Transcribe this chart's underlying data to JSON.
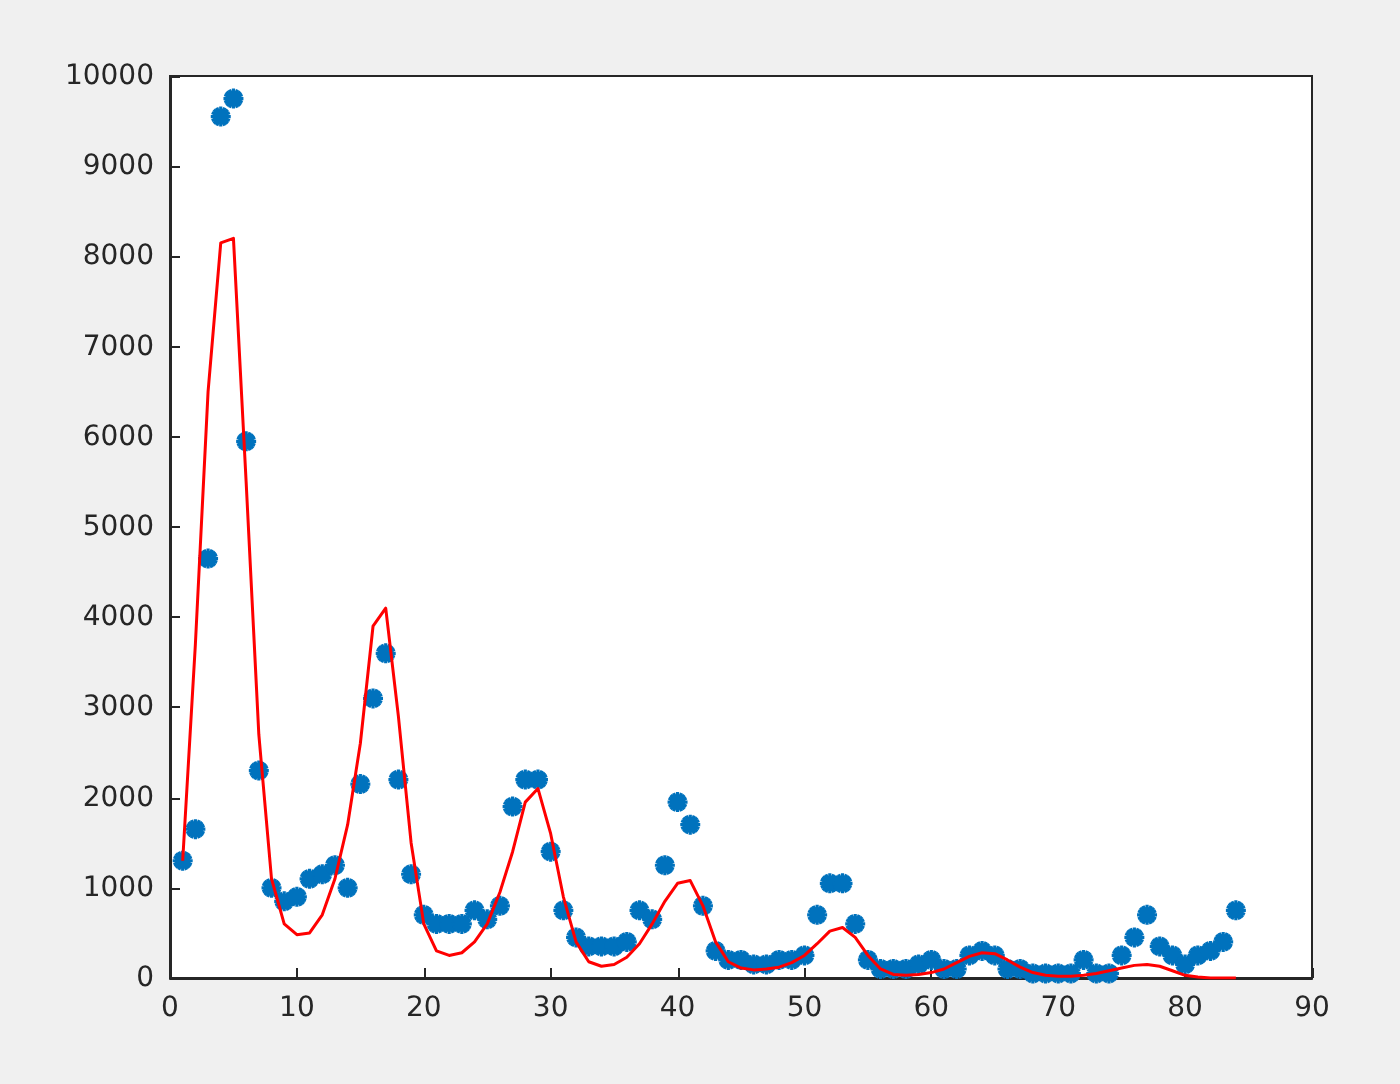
{
  "chart_data": {
    "type": "scatter",
    "xlim": [
      0,
      90
    ],
    "xticks": [
      0,
      10,
      20,
      30,
      40,
      50,
      60,
      70,
      80,
      90
    ],
    "ylim": [
      0,
      10000
    ],
    "yticks": [
      0,
      1000,
      2000,
      3000,
      4000,
      5000,
      6000,
      7000,
      8000,
      9000,
      10000
    ],
    "grid": false,
    "series": [
      {
        "marker": "cross",
        "color": "#0072bd",
        "x": [
          1,
          2,
          3,
          4,
          5,
          6,
          7,
          8,
          9,
          10,
          11,
          12,
          13,
          14,
          15,
          16,
          17,
          18,
          19,
          20,
          21,
          22,
          23,
          24,
          25,
          26,
          27,
          28,
          29,
          30,
          31,
          32,
          33,
          34,
          35,
          36,
          37,
          38,
          39,
          40,
          41,
          42,
          43,
          44,
          45,
          46,
          47,
          48,
          49,
          50,
          51,
          52,
          53,
          54,
          55,
          56,
          57,
          58,
          59,
          60,
          61,
          62,
          63,
          64,
          65,
          66,
          67,
          68,
          69,
          70,
          71,
          72,
          73,
          74,
          75,
          76,
          77,
          78,
          79,
          80,
          81,
          82,
          83,
          84
        ],
        "values": [
          1300,
          1650,
          4650,
          9550,
          9750,
          5950,
          2300,
          1000,
          850,
          900,
          1100,
          1150,
          1250,
          1000,
          2150,
          3100,
          3600,
          2200,
          1150,
          700,
          600,
          600,
          600,
          750,
          650,
          800,
          1900,
          2200,
          2200,
          1400,
          750,
          450,
          350,
          350,
          350,
          400,
          750,
          650,
          1250,
          1950,
          1700,
          800,
          300,
          200,
          200,
          150,
          150,
          200,
          200,
          250,
          700,
          1050,
          1050,
          600,
          200,
          100,
          100,
          100,
          150,
          200,
          100,
          100,
          250,
          300,
          250,
          100,
          100,
          50,
          50,
          50,
          50,
          200,
          50,
          50,
          250,
          450,
          700,
          350,
          250,
          150,
          250,
          300,
          400,
          750
        ]
      },
      {
        "type": "line",
        "marker": "none",
        "line_style": "solid",
        "color": "#ff0000",
        "x": [
          1,
          2,
          3,
          4,
          5,
          6,
          7,
          8,
          9,
          10,
          11,
          12,
          13,
          14,
          15,
          16,
          17,
          18,
          19,
          20,
          21,
          22,
          23,
          24,
          25,
          26,
          27,
          28,
          29,
          30,
          31,
          32,
          33,
          34,
          35,
          36,
          37,
          38,
          39,
          40,
          41,
          42,
          43,
          44,
          45,
          46,
          47,
          48,
          49,
          50,
          51,
          52,
          53,
          54,
          55,
          56,
          57,
          58,
          59,
          60,
          61,
          62,
          63,
          64,
          65,
          66,
          67,
          68,
          69,
          70,
          71,
          72,
          73,
          74,
          75,
          76,
          77,
          78,
          79,
          80,
          81,
          82,
          83,
          84
        ],
        "values": [
          1300,
          3700,
          6500,
          8150,
          8200,
          5500,
          2700,
          1100,
          600,
          480,
          500,
          700,
          1100,
          1700,
          2600,
          3900,
          4100,
          2900,
          1500,
          600,
          300,
          250,
          280,
          400,
          600,
          950,
          1400,
          1950,
          2100,
          1600,
          900,
          400,
          180,
          130,
          150,
          230,
          380,
          600,
          850,
          1050,
          1080,
          800,
          400,
          180,
          110,
          90,
          100,
          120,
          170,
          250,
          380,
          520,
          560,
          450,
          250,
          100,
          40,
          30,
          40,
          60,
          100,
          170,
          240,
          280,
          270,
          200,
          120,
          60,
          30,
          20,
          20,
          30,
          50,
          80,
          110,
          140,
          150,
          130,
          80,
          30,
          10,
          0,
          0,
          0
        ]
      }
    ]
  }
}
